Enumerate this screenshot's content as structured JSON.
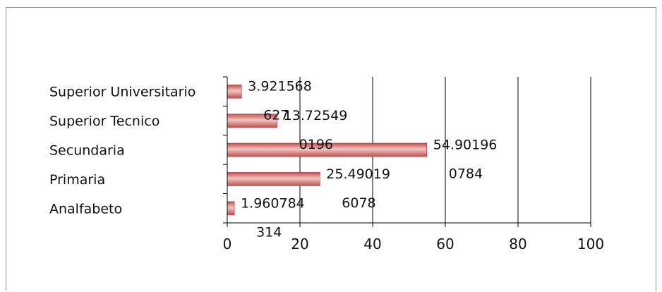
{
  "chart_data": {
    "type": "bar",
    "orientation": "horizontal",
    "categories": [
      "Superior Universitario",
      "Superior Tecnico",
      "Secundaria",
      "Primaria",
      "Analfabeto"
    ],
    "values": [
      3.921568627,
      13.725490196,
      54.901960784,
      25.490196078,
      1.960784314
    ],
    "data_labels": [
      [
        "3.921568",
        "627"
      ],
      [
        "13.72549",
        "0196"
      ],
      [
        "54.90196",
        "0784"
      ],
      [
        "25.49019",
        "6078"
      ],
      [
        "1.960784",
        "314"
      ]
    ],
    "xlim": [
      0,
      100
    ],
    "x_ticks": [
      "0",
      "20",
      "40",
      "60",
      "80",
      "100"
    ],
    "grid": true,
    "legend": "none",
    "bar_color": "#c0504d",
    "bar_color_light": "#f2c4c3"
  }
}
